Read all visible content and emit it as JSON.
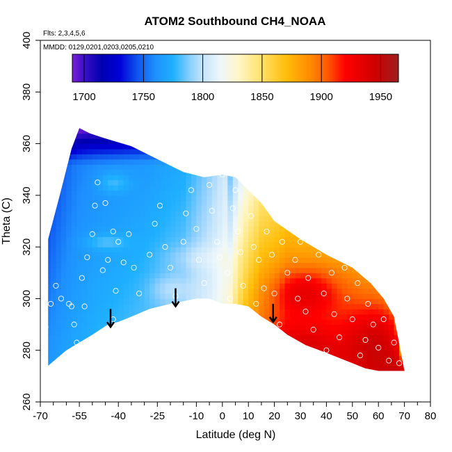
{
  "chart_data": {
    "type": "heatmap",
    "title": "ATOM2 Southbound CH4_NOAA",
    "annotations": [
      "Flts: 2,3,4,5,6",
      "MMDD: 0129,0201,0203,0205,0210"
    ],
    "xlabel": "Latitude (deg N)",
    "ylabel": "Theta (C)",
    "xlim": [
      -70,
      80
    ],
    "ylim": [
      260,
      400
    ],
    "x_ticks_major": [
      -70,
      -55,
      -40,
      -25,
      -10,
      0,
      10,
      20,
      30,
      40,
      50,
      60,
      70,
      80
    ],
    "x_tick_labels": [
      "-70",
      "-55",
      "-40",
      "-25",
      "-10",
      "0",
      "10",
      "20",
      "30",
      "40",
      "50",
      "60",
      "70",
      "80"
    ],
    "x_ticks_minor": [
      -65,
      -60,
      -50,
      -45,
      -35,
      -30,
      -20,
      -15,
      -5,
      5,
      15,
      25,
      35,
      45,
      55,
      65,
      75
    ],
    "y_ticks": [
      260,
      280,
      300,
      320,
      340,
      360,
      380,
      400
    ],
    "y_tick_labels": [
      "260",
      "280",
      "300",
      "320",
      "340",
      "360",
      "380",
      "400"
    ],
    "colorbar": {
      "range": [
        1690,
        1965
      ],
      "ticks": [
        1700,
        1750,
        1800,
        1850,
        1900,
        1950
      ],
      "tick_labels": [
        "1700",
        "1750",
        "1800",
        "1850",
        "1900",
        "1950"
      ],
      "stops": [
        {
          "value": 1690,
          "color": "#7b1fd8"
        },
        {
          "value": 1700,
          "color": "#3a10c8"
        },
        {
          "value": 1715,
          "color": "#0000b0"
        },
        {
          "value": 1730,
          "color": "#0000d8"
        },
        {
          "value": 1745,
          "color": "#0f55ee"
        },
        {
          "value": 1760,
          "color": "#1e90ff"
        },
        {
          "value": 1775,
          "color": "#1fb0ff"
        },
        {
          "value": 1790,
          "color": "#8fd0ff"
        },
        {
          "value": 1800,
          "color": "#c4e4fb"
        },
        {
          "value": 1815,
          "color": "#eef7fb"
        },
        {
          "value": 1830,
          "color": "#fff7c8"
        },
        {
          "value": 1850,
          "color": "#ffe066"
        },
        {
          "value": 1870,
          "color": "#ffbe0a"
        },
        {
          "value": 1890,
          "color": "#ff8c00"
        },
        {
          "value": 1905,
          "color": "#ff5a00"
        },
        {
          "value": 1920,
          "color": "#ff0000"
        },
        {
          "value": 1945,
          "color": "#d00000"
        },
        {
          "value": 1965,
          "color": "#9c1f1f"
        }
      ]
    },
    "field_model": {
      "description": "CH4 (ppb) as a function of latitude and theta",
      "latitude_breaks": [
        -67,
        -50,
        -30,
        -15,
        -5,
        3,
        8,
        15,
        25,
        40,
        55,
        70
      ],
      "base_values": [
        1755,
        1765,
        1772,
        1782,
        1800,
        1818,
        1850,
        1880,
        1903,
        1912,
        1920,
        1935
      ]
    },
    "domain_outline": {
      "top": [
        [
          -67,
          323
        ],
        [
          -62,
          342
        ],
        [
          -58,
          358
        ],
        [
          -55,
          366
        ],
        [
          -51,
          364
        ],
        [
          -45,
          362
        ],
        [
          -35,
          359
        ],
        [
          -25,
          354
        ],
        [
          -15,
          349
        ],
        [
          -7,
          347
        ],
        [
          0,
          348
        ],
        [
          5,
          347
        ],
        [
          10,
          342
        ],
        [
          15,
          337
        ],
        [
          20,
          330
        ],
        [
          30,
          323
        ],
        [
          40,
          317
        ],
        [
          50,
          312
        ],
        [
          57,
          306
        ],
        [
          62,
          300
        ],
        [
          66,
          293
        ],
        [
          70,
          272
        ]
      ],
      "bottom": [
        [
          -67,
          274
        ],
        [
          -60,
          280
        ],
        [
          -50,
          286
        ],
        [
          -44,
          290
        ],
        [
          -40,
          291
        ],
        [
          -35,
          293
        ],
        [
          -28,
          296
        ],
        [
          -20,
          298
        ],
        [
          -10,
          300
        ],
        [
          -5,
          300
        ],
        [
          0,
          298
        ],
        [
          5,
          298
        ],
        [
          10,
          297
        ],
        [
          15,
          293
        ],
        [
          20,
          290
        ],
        [
          25,
          286
        ],
        [
          32,
          282
        ],
        [
          40,
          279
        ],
        [
          50,
          275
        ],
        [
          55,
          273
        ],
        [
          60,
          272
        ],
        [
          70,
          272
        ]
      ]
    },
    "arrows": [
      {
        "lat": -43,
        "theta_top": 296,
        "theta_tip": 289
      },
      {
        "lat": -18,
        "theta_top": 304,
        "theta_tip": 297
      },
      {
        "lat": 19.5,
        "theta_top": 298,
        "theta_tip": 291
      }
    ],
    "observations": [
      [
        -68,
        289
      ],
      [
        -66,
        298
      ],
      [
        -64,
        305
      ],
      [
        -62,
        300
      ],
      [
        -59,
        298
      ],
      [
        -58,
        297
      ],
      [
        -57,
        290
      ],
      [
        -56,
        283
      ],
      [
        -55,
        281
      ],
      [
        -53,
        297
      ],
      [
        -54,
        308
      ],
      [
        -52,
        316
      ],
      [
        -50,
        325
      ],
      [
        -49,
        336
      ],
      [
        -48,
        345
      ],
      [
        -45,
        337
      ],
      [
        -42,
        326
      ],
      [
        -40,
        322
      ],
      [
        -44,
        315
      ],
      [
        -46,
        311
      ],
      [
        -41,
        303
      ],
      [
        -42,
        292
      ],
      [
        -38,
        314
      ],
      [
        -36,
        325
      ],
      [
        -34,
        312
      ],
      [
        -32,
        302
      ],
      [
        -30,
        294
      ],
      [
        -28,
        317
      ],
      [
        -26,
        329
      ],
      [
        -24,
        336
      ],
      [
        -22,
        320
      ],
      [
        -20,
        312
      ],
      [
        -18,
        301
      ],
      [
        -15,
        322
      ],
      [
        -14,
        333
      ],
      [
        -12,
        342
      ],
      [
        -10,
        327
      ],
      [
        -9,
        315
      ],
      [
        -7,
        306
      ],
      [
        -5,
        344
      ],
      [
        -4,
        334
      ],
      [
        -2,
        322
      ],
      [
        -1,
        316
      ],
      [
        0,
        348
      ],
      [
        2,
        310
      ],
      [
        3,
        300
      ],
      [
        4,
        335
      ],
      [
        5,
        342
      ],
      [
        6,
        326
      ],
      [
        7,
        318
      ],
      [
        8,
        305
      ],
      [
        10,
        346
      ],
      [
        11,
        332
      ],
      [
        12,
        320
      ],
      [
        13,
        298
      ],
      [
        14,
        315
      ],
      [
        16,
        304
      ],
      [
        17,
        326
      ],
      [
        18,
        340
      ],
      [
        19,
        317
      ],
      [
        20,
        302
      ],
      [
        22,
        290
      ],
      [
        23,
        322
      ],
      [
        25,
        310
      ],
      [
        26,
        330
      ],
      [
        28,
        315
      ],
      [
        29,
        300
      ],
      [
        30,
        322
      ],
      [
        32,
        295
      ],
      [
        33,
        308
      ],
      [
        35,
        288
      ],
      [
        37,
        317
      ],
      [
        39,
        302
      ],
      [
        40,
        280
      ],
      [
        42,
        310
      ],
      [
        43,
        294
      ],
      [
        45,
        285
      ],
      [
        47,
        312
      ],
      [
        48,
        300
      ],
      [
        50,
        292
      ],
      [
        52,
        306
      ],
      [
        53,
        278
      ],
      [
        55,
        284
      ],
      [
        56,
        298
      ],
      [
        57,
        310
      ],
      [
        58,
        290
      ],
      [
        60,
        281
      ],
      [
        62,
        292
      ],
      [
        64,
        276
      ],
      [
        66,
        283
      ],
      [
        68,
        275
      ]
    ]
  }
}
